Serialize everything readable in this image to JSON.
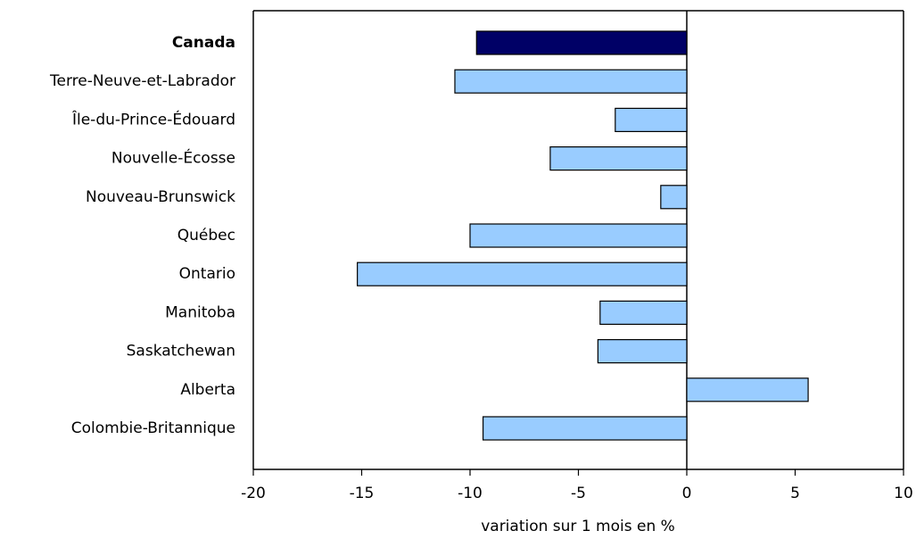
{
  "chart_data": {
    "type": "bar",
    "orientation": "horizontal",
    "title": "",
    "xlabel": "variation sur 1 mois en %",
    "ylabel": "",
    "xlim": [
      -20,
      10
    ],
    "xticks": [
      -20,
      -15,
      -10,
      -5,
      0,
      5,
      10
    ],
    "grid": false,
    "legend": "none",
    "categories": [
      "Canada",
      "Terre-Neuve-et-Labrador",
      "Île-du-Prince-Édouard",
      "Nouvelle-Écosse",
      "Nouveau-Brunswick",
      "Québec",
      "Ontario",
      "Manitoba",
      "Saskatchewan",
      "Alberta",
      "Colombie-Britannique"
    ],
    "values": [
      -9.7,
      -10.7,
      -3.3,
      -6.3,
      -1.2,
      -10.0,
      -15.2,
      -4.0,
      -4.1,
      5.6,
      -9.4
    ],
    "highlight_category": "Canada",
    "colors": {
      "highlight": "#000066",
      "bar": "#99ccff",
      "stroke": "#000000"
    }
  }
}
